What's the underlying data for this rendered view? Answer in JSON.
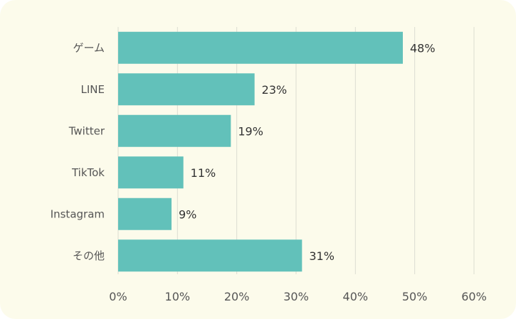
{
  "chart_data": {
    "type": "bar",
    "orientation": "horizontal",
    "categories": [
      "ゲーム",
      "LINE",
      "Twitter",
      "TikTok",
      "Instagram",
      "その他"
    ],
    "values": [
      48,
      23,
      19,
      11,
      9,
      31
    ],
    "value_labels": [
      "48%",
      "23%",
      "19%",
      "11%",
      "9%",
      "31%"
    ],
    "xticks": [
      "0%",
      "10%",
      "20%",
      "30%",
      "40%",
      "50%",
      "60%"
    ],
    "xlim": [
      0,
      60
    ],
    "grid": true,
    "title": "",
    "xlabel": "",
    "ylabel": "",
    "bar_color": "#62c1ba",
    "background_color": "#fcfbeb"
  }
}
